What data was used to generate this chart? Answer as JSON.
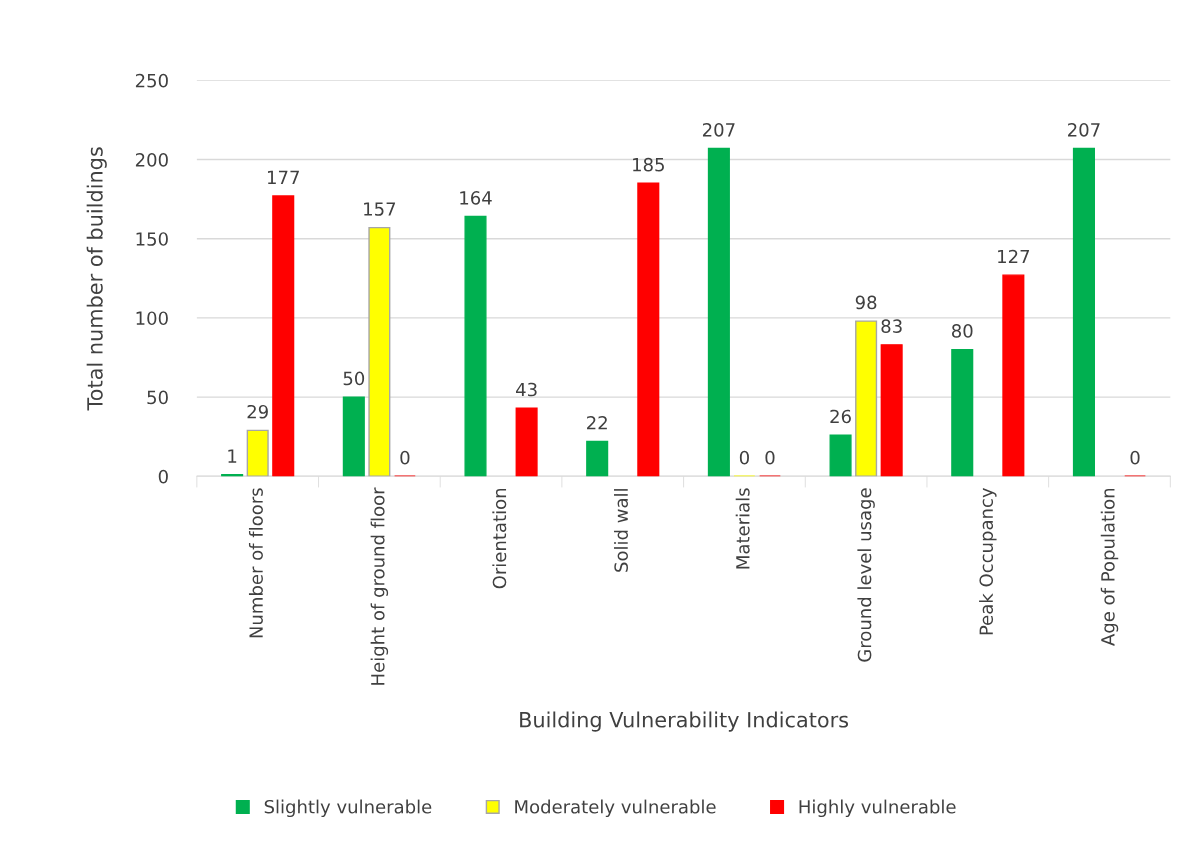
{
  "chart_data": {
    "type": "bar",
    "xlabel": "Building Vulnerability Indicators",
    "ylabel": "Total number of buildings",
    "categories": [
      "Number of floors",
      "Height of ground floor",
      "Orientation",
      "Solid wall",
      "Materials",
      "Ground level usage",
      "Peak Occupancy",
      "Age of Population"
    ],
    "series": [
      {
        "name": "Slightly vulnerable",
        "color": "#00b050",
        "values": [
          1,
          50,
          164,
          22,
          207,
          26,
          80,
          207
        ]
      },
      {
        "name": "Moderately vulnerable",
        "color": "#ffff00",
        "values": [
          29,
          157,
          null,
          null,
          0,
          98,
          null,
          null
        ]
      },
      {
        "name": "Highly vulnerable",
        "color": "#ff0000",
        "values": [
          177,
          0,
          43,
          185,
          0,
          83,
          127,
          0
        ]
      }
    ],
    "ylim": [
      0,
      250
    ],
    "yticks": [
      0,
      50,
      100,
      150,
      200,
      250
    ],
    "grid": "y",
    "legend": "bottom",
    "data_labels": true
  }
}
